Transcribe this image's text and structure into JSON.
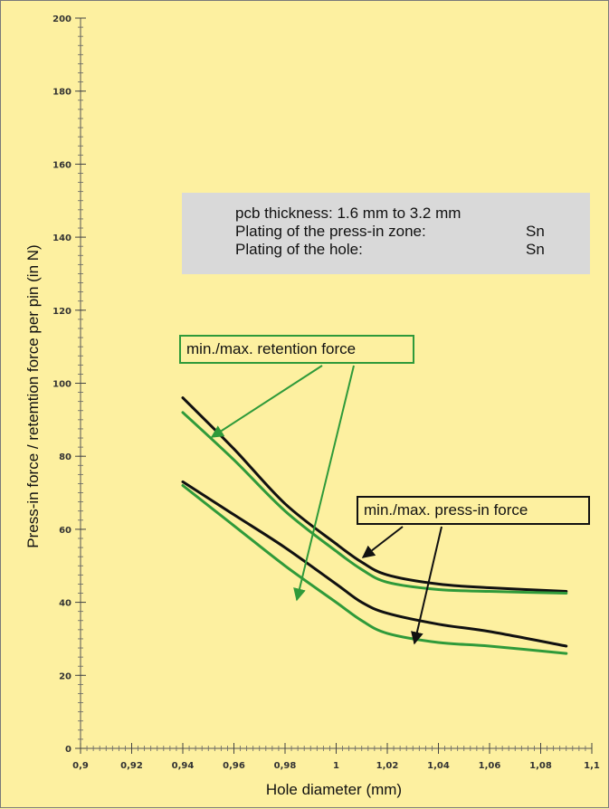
{
  "chart_data": {
    "type": "line",
    "xlabel": "Hole diameter (mm)",
    "ylabel": "Press-in force / retemtion force per pin (in N)",
    "xlim": [
      0.9,
      1.1
    ],
    "ylim": [
      0,
      200
    ],
    "x_ticks": [
      "0,9",
      "0,92",
      "0,94",
      "0,96",
      "0,98",
      "1",
      "1,02",
      "1,04",
      "1,06",
      "1,08",
      "1,1"
    ],
    "y_ticks": [
      "0",
      "20",
      "40",
      "60",
      "80",
      "100",
      "120",
      "140",
      "160",
      "180",
      "200"
    ],
    "grid": false,
    "series": [
      {
        "group": "press-in",
        "bound": "max",
        "color": "#111111",
        "points": [
          [
            0.94,
            96
          ],
          [
            0.96,
            82
          ],
          [
            0.98,
            67
          ],
          [
            1.0,
            56
          ],
          [
            1.01,
            51
          ],
          [
            1.02,
            47.5
          ],
          [
            1.04,
            45
          ],
          [
            1.06,
            44
          ],
          [
            1.09,
            43
          ]
        ]
      },
      {
        "group": "retention",
        "bound": "max",
        "color": "#2f9a3a",
        "points": [
          [
            0.94,
            92
          ],
          [
            0.96,
            79
          ],
          [
            0.98,
            65
          ],
          [
            1.0,
            54
          ],
          [
            1.01,
            49
          ],
          [
            1.02,
            45.5
          ],
          [
            1.04,
            43.5
          ],
          [
            1.06,
            43
          ],
          [
            1.09,
            42.5
          ]
        ]
      },
      {
        "group": "press-in",
        "bound": "min",
        "color": "#111111",
        "points": [
          [
            0.94,
            73
          ],
          [
            0.96,
            64
          ],
          [
            0.98,
            55
          ],
          [
            1.0,
            45
          ],
          [
            1.01,
            40
          ],
          [
            1.02,
            37
          ],
          [
            1.04,
            34
          ],
          [
            1.06,
            32
          ],
          [
            1.09,
            28
          ]
        ]
      },
      {
        "group": "retention",
        "bound": "min",
        "color": "#2f9a3a",
        "points": [
          [
            0.94,
            72
          ],
          [
            0.96,
            61
          ],
          [
            0.98,
            50
          ],
          [
            1.0,
            40
          ],
          [
            1.01,
            35
          ],
          [
            1.02,
            31.5
          ],
          [
            1.04,
            29
          ],
          [
            1.06,
            28
          ],
          [
            1.09,
            26
          ]
        ]
      }
    ],
    "annotations": [
      {
        "text": "min./max. retention force",
        "color": "#2f9a3a",
        "target_group": "retention"
      },
      {
        "text": "min./max. press-in force",
        "color": "#111111",
        "target_group": "press-in"
      }
    ]
  },
  "info_box": {
    "line1": "pcb thickness: 1.6 mm to 3.2 mm",
    "line2": "Plating of the press-in zone:",
    "line2_value": "Sn",
    "line3": "Plating of the hole:",
    "line3_value": "Sn"
  },
  "colors": {
    "background": "#fdf0a0",
    "info_box": "#d9d9d9",
    "retention": "#2f9a3a",
    "press_in": "#111111"
  }
}
